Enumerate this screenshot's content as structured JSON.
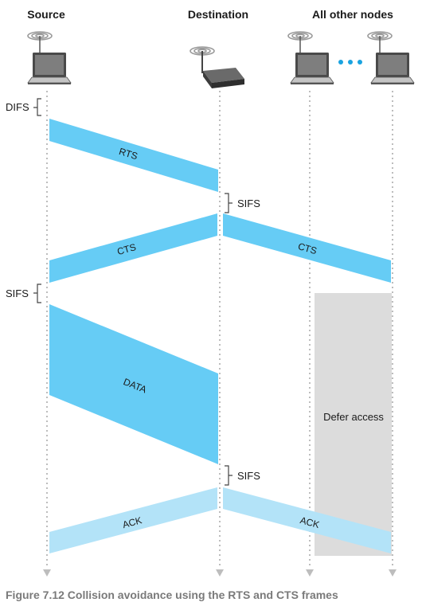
{
  "headers": {
    "source": "Source",
    "destination": "Destination",
    "other_nodes": "All other nodes"
  },
  "intervals": {
    "difs": "DIFS",
    "sifs": "SIFS"
  },
  "frames": {
    "rts": "RTS",
    "cts": "CTS",
    "data": "DATA",
    "ack": "ACK"
  },
  "defer_access": "Defer access",
  "caption": "Figure 7.12 Collision avoidance using the RTS and CTS frames",
  "colors": {
    "control_frame": "#66ccf5",
    "ack_frame": "#b3e3f8",
    "defer_box": "#dcdcdc",
    "timeline": "#bdbdbd",
    "dots": "#1aa3e0",
    "caption": "#7a7a7a"
  },
  "icons": [
    "laptop-icon",
    "wireless-router-icon",
    "wifi-signal-icon",
    "ellipsis-icon"
  ]
}
